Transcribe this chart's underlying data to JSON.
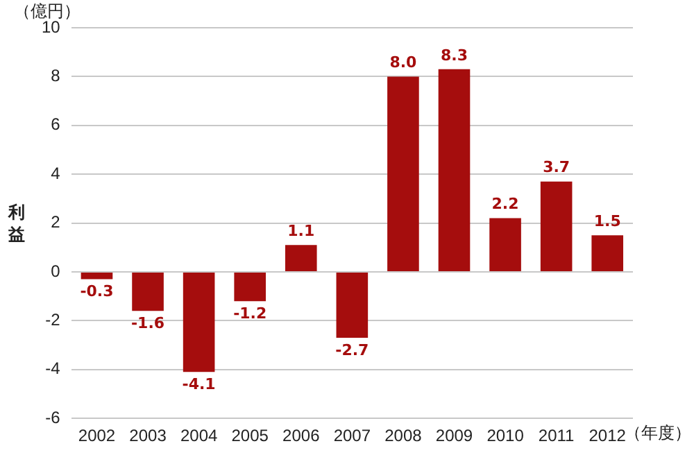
{
  "chart_data": {
    "type": "bar",
    "ylabel": "利益",
    "annotations": [
      "（億円）",
      "（年度）"
    ],
    "categories": [
      "2002",
      "2003",
      "2004",
      "2005",
      "2006",
      "2007",
      "2008",
      "2009",
      "2010",
      "2011",
      "2012"
    ],
    "values": [
      -0.3,
      -1.6,
      -4.1,
      -1.2,
      1.1,
      -2.7,
      8.0,
      8.3,
      2.2,
      3.7,
      1.5
    ],
    "value_labels": [
      "-0.3",
      "-1.6",
      "-4.1",
      "-1.2",
      "1.1",
      "-2.7",
      "8.0",
      "8.3",
      "2.2",
      "3.7",
      "1.5"
    ],
    "color": "#a50d0d",
    "ylim": [
      -6,
      10
    ],
    "yticks": [
      -6,
      -4,
      -2,
      0,
      2,
      4,
      6,
      8,
      10
    ],
    "grid": "y",
    "legend": false
  }
}
